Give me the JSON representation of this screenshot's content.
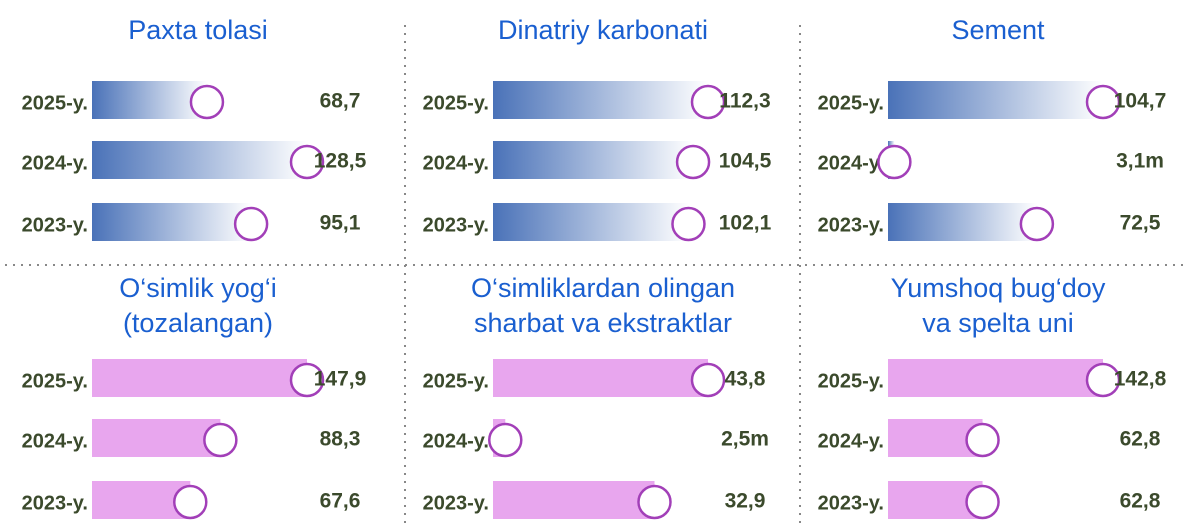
{
  "chart_data": [
    {
      "type": "bar",
      "title": [
        "Paxta tolasi"
      ],
      "categories": [
        "2025-y.",
        "2024-y.",
        "2023-y."
      ],
      "values": [
        68.7,
        128.5,
        95.1
      ],
      "value_labels": [
        "68,7",
        "128,5",
        "95,1"
      ],
      "color": "#4a72b8",
      "gradient": true
    },
    {
      "type": "bar",
      "title": [
        "Dinatriy karbonati"
      ],
      "categories": [
        "2025-y.",
        "2024-y.",
        "2023-y."
      ],
      "values": [
        112.3,
        104.5,
        102.1
      ],
      "value_labels": [
        "112,3",
        "104,5",
        "102,1"
      ],
      "color": "#4a72b8",
      "gradient": true
    },
    {
      "type": "bar",
      "title": [
        "Sement"
      ],
      "categories": [
        "2025-y.",
        "2024-y.",
        "2023-y."
      ],
      "values": [
        104.7,
        3.1,
        72.5
      ],
      "value_labels": [
        "104,7",
        "3,1m",
        "72,5"
      ],
      "color": "#4a72b8",
      "gradient": true
    },
    {
      "type": "bar",
      "title": [
        "O‘simlik yog‘i",
        "(tozalangan)"
      ],
      "categories": [
        "2025-y.",
        "2024-y.",
        "2023-y."
      ],
      "values": [
        147.9,
        88.3,
        67.6
      ],
      "value_labels": [
        "147,9",
        "88,3",
        "67,6"
      ],
      "color": "#e8a6ee",
      "gradient": false
    },
    {
      "type": "bar",
      "title": [
        "O‘simliklardan olingan",
        "sharbat va ekstraktlar"
      ],
      "categories": [
        "2025-y.",
        "2024-y.",
        "2023-y."
      ],
      "values": [
        43.8,
        2.5,
        32.9
      ],
      "value_labels": [
        "43,8",
        "2,5m",
        "32,9"
      ],
      "color": "#e8a6ee",
      "gradient": false
    },
    {
      "type": "bar",
      "title": [
        "Yumshoq bug‘doy",
        "va spelta uni"
      ],
      "categories": [
        "2025-y.",
        "2024-y.",
        "2023-y."
      ],
      "values": [
        142.8,
        62.8,
        62.8
      ],
      "value_labels": [
        "142,8",
        "62,8",
        "62,8"
      ],
      "color": "#e8a6ee",
      "gradient": false
    }
  ]
}
